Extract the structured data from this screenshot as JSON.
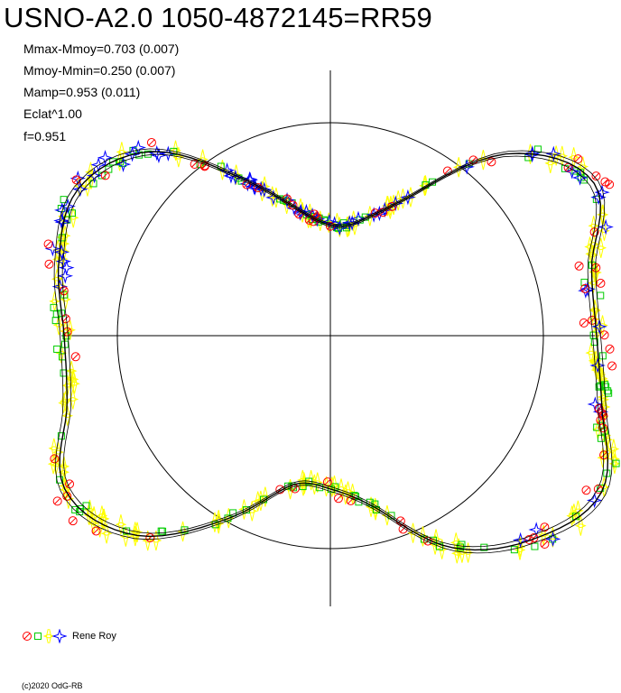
{
  "header": {
    "title": "USNO-A2.0 1050-4872145=RR59",
    "stats": [
      "Mmax-Mmoy=0.703 (0.007)",
      "Mmoy-Mmin=0.250 (0.007)",
      "Mamp=0.953 (0.011)",
      "Eclat^1.00",
      "f=0.951"
    ]
  },
  "legend": {
    "label": "Rene Roy"
  },
  "footer": {
    "copyright": "(c)2020 OdG-RB"
  },
  "chart_data": {
    "type": "scatter",
    "projection": "polar (phase as angle, brightness as radius)",
    "reference_circle_radius": 1.0,
    "grid": false,
    "legend_position": "bottom-left",
    "markers": [
      {
        "symbol": "circle",
        "color": "#ff0000"
      },
      {
        "symbol": "square",
        "color": "#00cc00"
      },
      {
        "symbol": "spike",
        "color": "#ffff00"
      },
      {
        "symbol": "star",
        "color": "#0000ff"
      }
    ],
    "fit_curve_color": "#000000",
    "fit_curve": {
      "angle_deg": [
        0,
        15,
        30,
        45,
        60,
        75,
        90,
        105,
        120,
        135,
        150,
        165,
        180,
        195,
        210,
        225,
        240,
        255,
        270,
        285,
        300,
        315,
        330,
        345,
        360
      ],
      "radius": [
        0.52,
        0.56,
        0.76,
        1.21,
        1.43,
        1.27,
        1.25,
        1.32,
        1.47,
        1.35,
        1.15,
        0.84,
        0.72,
        0.73,
        1.0,
        1.32,
        1.44,
        1.28,
        1.25,
        1.32,
        1.37,
        1.22,
        0.86,
        0.62,
        0.52
      ]
    }
  }
}
